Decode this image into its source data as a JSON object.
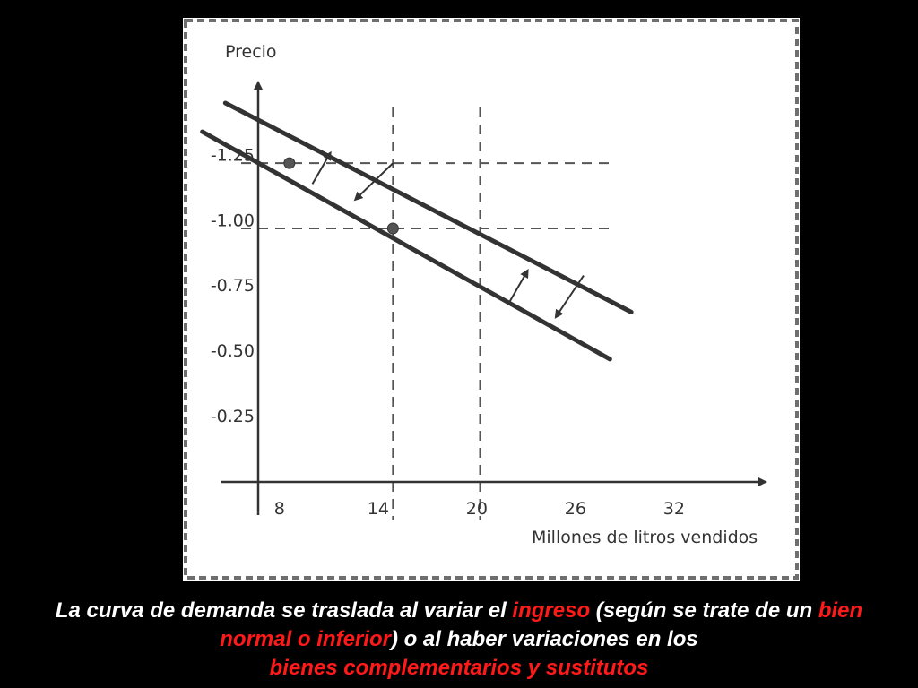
{
  "chart_data": {
    "type": "line",
    "xlabel": "Millones de litros vendidos",
    "ylabel": "Precio",
    "x_ticks": [
      8,
      14,
      20,
      26,
      32
    ],
    "y_ticks": [
      -1.25,
      -1.0,
      -0.75,
      -0.5,
      -0.25
    ],
    "x_tick_labels": [
      "8",
      "14",
      "20",
      "26",
      "32"
    ],
    "y_tick_labels": [
      "-1.25",
      "-1.00",
      "-0.75",
      "-0.50",
      "-0.25"
    ],
    "xlim": [
      6.7,
      36.7
    ],
    "ylim": [
      0.0,
      -1.45
    ],
    "series": [
      {
        "values": [
          [
            4.7,
            -1.45
          ],
          [
            29.4,
            -0.65
          ]
        ]
      },
      {
        "values": [
          [
            3.3,
            -1.34
          ],
          [
            28.1,
            -0.47
          ]
        ]
      }
    ],
    "points": [
      {
        "x": 8.6,
        "y": -1.22
      },
      {
        "x": 14.9,
        "y": -0.97
      }
    ],
    "guides": {
      "vertical_x": [
        14.9,
        20.2
      ],
      "horizontal_y": [
        -1.22,
        -0.97
      ],
      "horizontal_to_x": 28.3
    },
    "arrows": [
      {
        "from": [
          10.0,
          -1.14
        ],
        "to": [
          11.1,
          -1.26
        ],
        "direction": "out"
      },
      {
        "from": [
          14.9,
          -1.22
        ],
        "to": [
          12.6,
          -1.08
        ],
        "direction": "in"
      },
      {
        "from": [
          22.0,
          -0.69
        ],
        "to": [
          23.1,
          -0.81
        ],
        "direction": "out"
      },
      {
        "from": [
          26.5,
          -0.79
        ],
        "to": [
          24.8,
          -0.63
        ],
        "direction": "in"
      }
    ],
    "grid": false,
    "legend": "none",
    "line_color": "#333333",
    "guide_color": "#555555"
  },
  "caption": {
    "part1": "La curva de demanda se traslada al variar el ",
    "hl1": "ingreso",
    "part2": " (según se trate de un ",
    "hl2": "bien normal o inferior",
    "part3": ") o al haber  variaciones en los ",
    "hl3": "bienes complementarios y sustitutos"
  },
  "colors": {
    "background": "#000000",
    "panel": "#ffffff",
    "caption_text": "#ffffff",
    "caption_highlight": "#ff1a1a"
  }
}
